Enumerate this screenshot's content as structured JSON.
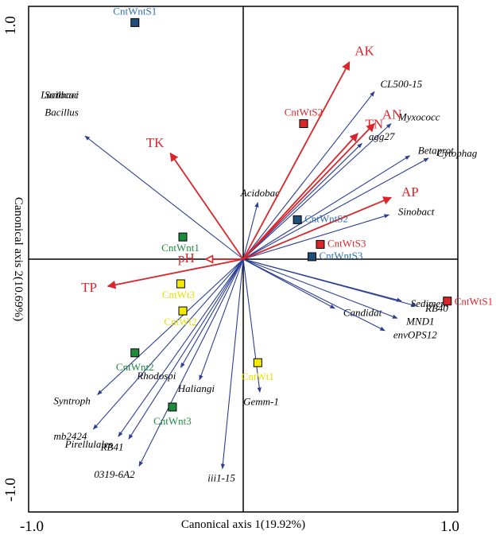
{
  "chart_data": {
    "type": "scatter",
    "subtype": "rda-biplot",
    "xlabel": "Canonical axis 1(19.92%)",
    "ylabel": "Canonical axis 2(10.69%)",
    "xlim": [
      -1.0,
      1.0
    ],
    "ylim": [
      -1.0,
      1.0
    ],
    "x_ticks": [
      "-1.0",
      "1.0"
    ],
    "y_ticks": [
      "1.0",
      "-1.0"
    ],
    "colors": {
      "environment": "#d9262a",
      "species": "#2b3f93",
      "group_blue": "#1f4e79",
      "group_red": "#d9262a",
      "group_green": "#1e8a3c",
      "group_yellow": "#f2ea00"
    },
    "environmental_arrows": [
      {
        "label": "AK",
        "x": 0.51,
        "y": 0.8
      },
      {
        "label": "TN",
        "x": 0.55,
        "y": 0.51
      },
      {
        "label": "AN",
        "x": 0.63,
        "y": 0.55
      },
      {
        "label": "AP",
        "x": 0.71,
        "y": 0.25
      },
      {
        "label": "TK",
        "x": -0.35,
        "y": 0.43
      },
      {
        "label": "pH",
        "x": -0.18,
        "y": 0.0
      },
      {
        "label": "TP",
        "x": -0.65,
        "y": -0.11
      }
    ],
    "species_arrows": [
      {
        "label": "CL500-15",
        "x": 0.63,
        "y": 0.68
      },
      {
        "label": "Myxococc",
        "x": 0.71,
        "y": 0.55
      },
      {
        "label": "agg27",
        "x": 0.57,
        "y": 0.47
      },
      {
        "label": "Betaprot",
        "x": 0.8,
        "y": 0.42
      },
      {
        "label": "Cytophag",
        "x": 0.89,
        "y": 0.41
      },
      {
        "label": "Sinobact",
        "x": 0.7,
        "y": 0.18
      },
      {
        "label": "Acidobac",
        "x": 0.07,
        "y": 0.23
      },
      {
        "label": "Soilbaci",
        "x": -0.76,
        "y": 0.5
      },
      {
        "label": "Bacillus",
        "x": -0.76,
        "y": 0.5
      },
      {
        "label": "Lactococ",
        "x": -0.76,
        "y": 0.5
      },
      {
        "label": "Sediment",
        "x": 0.76,
        "y": -0.17
      },
      {
        "label": "RB40",
        "x": 0.83,
        "y": -0.19
      },
      {
        "label": "Candidat",
        "x": 0.44,
        "y": -0.2
      },
      {
        "label": "MND1",
        "x": 0.74,
        "y": -0.24
      },
      {
        "label": "envOPS12",
        "x": 0.68,
        "y": -0.29
      },
      {
        "label": "Rhodospi",
        "x": -0.3,
        "y": -0.44
      },
      {
        "label": "Haliangi",
        "x": -0.21,
        "y": -0.49
      },
      {
        "label": "Gemm-1",
        "x": 0.08,
        "y": -0.54
      },
      {
        "label": "Syntroph",
        "x": -0.7,
        "y": -0.55
      },
      {
        "label": "mb2424",
        "x": -0.72,
        "y": -0.69
      },
      {
        "label": "Pirellulales",
        "x": -0.6,
        "y": -0.72
      },
      {
        "label": "RB41",
        "x": -0.55,
        "y": -0.73
      },
      {
        "label": "0319-6A2",
        "x": -0.5,
        "y": -0.84
      },
      {
        "label": "iii1-15",
        "x": -0.1,
        "y": -0.85
      }
    ],
    "samples": [
      {
        "label": "CntWntS1",
        "x": -0.52,
        "y": 0.96,
        "group": "blue"
      },
      {
        "label": "CntWntS2",
        "x": 0.26,
        "y": 0.16,
        "group": "blue"
      },
      {
        "label": "CntWntS3",
        "x": 0.33,
        "y": 0.01,
        "group": "blue"
      },
      {
        "label": "CntWtS1",
        "x": 0.98,
        "y": -0.17,
        "group": "red"
      },
      {
        "label": "CntWtS2",
        "x": 0.29,
        "y": 0.55,
        "group": "red"
      },
      {
        "label": "CntWtS3",
        "x": 0.37,
        "y": 0.06,
        "group": "red"
      },
      {
        "label": "CntWnt1",
        "x": -0.29,
        "y": 0.09,
        "group": "green"
      },
      {
        "label": "CntWnt2",
        "x": -0.52,
        "y": -0.38,
        "group": "green"
      },
      {
        "label": "CntWnt3",
        "x": -0.34,
        "y": -0.6,
        "group": "green"
      },
      {
        "label": "CntWt1",
        "x": 0.07,
        "y": -0.42,
        "group": "yellow"
      },
      {
        "label": "CntWt2",
        "x": -0.29,
        "y": -0.21,
        "group": "yellow"
      },
      {
        "label": "CntWt3",
        "x": -0.3,
        "y": -0.1,
        "group": "yellow"
      }
    ]
  }
}
